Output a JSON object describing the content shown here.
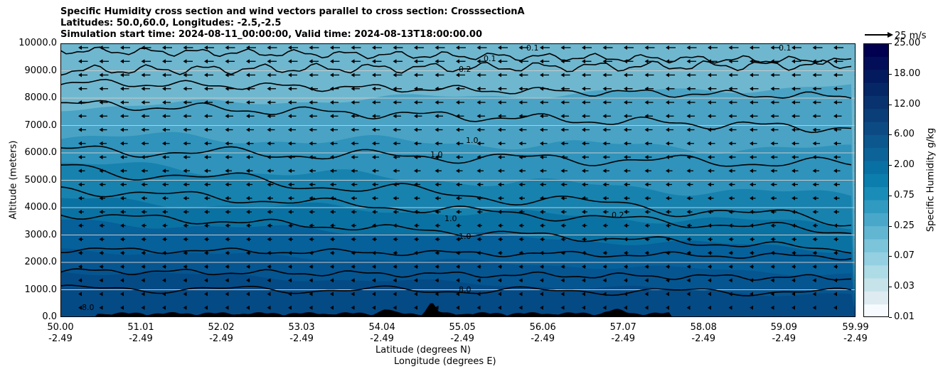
{
  "chart_data": {
    "type": "heatmap",
    "title_lines": [
      "Specific Humidity cross section and wind vectors parallel to cross section: CrosssectionA",
      "Latitudes: 50.0,60.0, Longitudes: -2.5,-2.5",
      "Simulation start time: 2024-08-11_00:00:00, Valid time: 2024-08-13T18:00:00.00"
    ],
    "ylabel": "Altitude (meters)",
    "xlabel_1": "Latitude (degrees N)",
    "xlabel_2": "Longitude (degrees E)",
    "ylim": [
      0,
      10000
    ],
    "y_ticks": [
      "0.0",
      "1000.0",
      "2000.0",
      "3000.0",
      "4000.0",
      "5000.0",
      "6000.0",
      "7000.0",
      "8000.0",
      "9000.0",
      "10000.0"
    ],
    "x_ticks_lat": [
      "50.00",
      "51.01",
      "52.02",
      "53.03",
      "54.04",
      "55.05",
      "56.06",
      "57.07",
      "58.08",
      "59.09",
      "59.99"
    ],
    "x_ticks_lon": [
      "-2.49",
      "-2.49",
      "-2.49",
      "-2.49",
      "-2.49",
      "-2.49",
      "-2.49",
      "-2.49",
      "-2.49",
      "-2.49",
      "-2.49"
    ],
    "colorbar": {
      "label": "Specific Humidity g/kg",
      "tick_labels": [
        "0.01",
        "0.03",
        "0.07",
        "0.25",
        "0.75",
        "2.00",
        "6.00",
        "12.00",
        "18.00",
        "25.00"
      ]
    },
    "quiver_key": "25 m/s",
    "contour_labels": [
      "0.1",
      "0.1",
      "0.1",
      "0.2",
      "0.2",
      "1.0",
      "1.0",
      "1.0",
      "1.0",
      "8.0",
      "8.0"
    ],
    "grid": "horizontal",
    "wind_direction": "toward decreasing latitude"
  }
}
